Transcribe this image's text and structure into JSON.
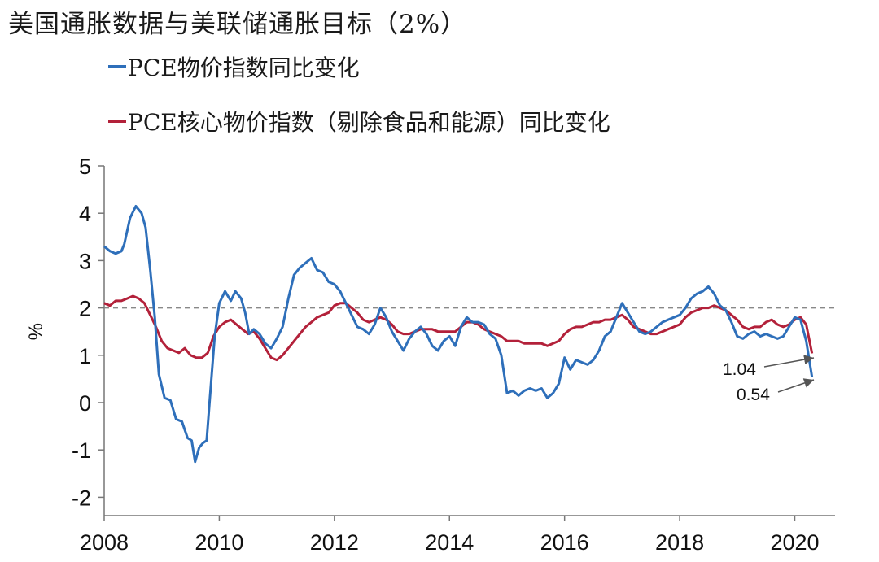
{
  "title": "美国通胀数据与美联储通胀目标（2%）",
  "chart_data": {
    "type": "line",
    "title": "美国通胀数据与美联储通胀目标（2%）",
    "ylabel": "%",
    "xlabel": "",
    "xlim": [
      2008,
      2020.7
    ],
    "ylim": [
      -2.5,
      5
    ],
    "yticks": [
      5,
      4,
      3,
      2,
      1,
      0,
      -1,
      -2
    ],
    "yticklabels": [
      "5",
      "4",
      "3",
      "2",
      "1",
      "0",
      "-1",
      "-2"
    ],
    "xticks": [
      2008,
      2010,
      2012,
      2014,
      2016,
      2018,
      2020
    ],
    "xticklabels": [
      "2008",
      "2010",
      "2012",
      "2014",
      "2016",
      "2018",
      "2020"
    ],
    "reference_line": {
      "y": 2,
      "style": "dashed",
      "color": "#888888"
    },
    "legend_position": "top-left",
    "series": [
      {
        "name": "PCE物价指数同比变化",
        "color": "#2e6fba",
        "points": [
          [
            2008.0,
            3.3
          ],
          [
            2008.1,
            3.2
          ],
          [
            2008.2,
            3.15
          ],
          [
            2008.3,
            3.2
          ],
          [
            2008.35,
            3.35
          ],
          [
            2008.45,
            3.9
          ],
          [
            2008.55,
            4.15
          ],
          [
            2008.65,
            4.0
          ],
          [
            2008.72,
            3.7
          ],
          [
            2008.8,
            2.8
          ],
          [
            2008.88,
            1.8
          ],
          [
            2008.95,
            0.6
          ],
          [
            2009.05,
            0.1
          ],
          [
            2009.15,
            0.05
          ],
          [
            2009.25,
            -0.35
          ],
          [
            2009.35,
            -0.4
          ],
          [
            2009.45,
            -0.75
          ],
          [
            2009.52,
            -0.8
          ],
          [
            2009.58,
            -1.25
          ],
          [
            2009.65,
            -0.95
          ],
          [
            2009.72,
            -0.85
          ],
          [
            2009.78,
            -0.8
          ],
          [
            2009.85,
            0.3
          ],
          [
            2009.92,
            1.4
          ],
          [
            2010.0,
            2.1
          ],
          [
            2010.1,
            2.35
          ],
          [
            2010.2,
            2.15
          ],
          [
            2010.28,
            2.35
          ],
          [
            2010.38,
            2.2
          ],
          [
            2010.45,
            1.9
          ],
          [
            2010.52,
            1.45
          ],
          [
            2010.6,
            1.55
          ],
          [
            2010.7,
            1.45
          ],
          [
            2010.8,
            1.25
          ],
          [
            2010.9,
            1.15
          ],
          [
            2011.0,
            1.35
          ],
          [
            2011.1,
            1.6
          ],
          [
            2011.2,
            2.2
          ],
          [
            2011.3,
            2.7
          ],
          [
            2011.4,
            2.85
          ],
          [
            2011.5,
            2.95
          ],
          [
            2011.6,
            3.05
          ],
          [
            2011.7,
            2.8
          ],
          [
            2011.8,
            2.75
          ],
          [
            2011.9,
            2.55
          ],
          [
            2012.0,
            2.5
          ],
          [
            2012.1,
            2.35
          ],
          [
            2012.2,
            2.1
          ],
          [
            2012.3,
            1.85
          ],
          [
            2012.4,
            1.6
          ],
          [
            2012.5,
            1.55
          ],
          [
            2012.6,
            1.45
          ],
          [
            2012.7,
            1.65
          ],
          [
            2012.8,
            2.0
          ],
          [
            2012.9,
            1.8
          ],
          [
            2013.0,
            1.5
          ],
          [
            2013.1,
            1.3
          ],
          [
            2013.2,
            1.1
          ],
          [
            2013.3,
            1.35
          ],
          [
            2013.4,
            1.5
          ],
          [
            2013.5,
            1.6
          ],
          [
            2013.6,
            1.45
          ],
          [
            2013.7,
            1.2
          ],
          [
            2013.8,
            1.1
          ],
          [
            2013.9,
            1.3
          ],
          [
            2014.0,
            1.4
          ],
          [
            2014.1,
            1.2
          ],
          [
            2014.2,
            1.6
          ],
          [
            2014.3,
            1.8
          ],
          [
            2014.4,
            1.7
          ],
          [
            2014.5,
            1.7
          ],
          [
            2014.6,
            1.65
          ],
          [
            2014.7,
            1.45
          ],
          [
            2014.8,
            1.35
          ],
          [
            2014.9,
            1.0
          ],
          [
            2015.0,
            0.2
          ],
          [
            2015.1,
            0.25
          ],
          [
            2015.2,
            0.15
          ],
          [
            2015.3,
            0.25
          ],
          [
            2015.4,
            0.3
          ],
          [
            2015.5,
            0.25
          ],
          [
            2015.6,
            0.3
          ],
          [
            2015.7,
            0.1
          ],
          [
            2015.8,
            0.2
          ],
          [
            2015.9,
            0.4
          ],
          [
            2016.0,
            0.95
          ],
          [
            2016.1,
            0.7
          ],
          [
            2016.2,
            0.9
          ],
          [
            2016.3,
            0.85
          ],
          [
            2016.4,
            0.8
          ],
          [
            2016.5,
            0.9
          ],
          [
            2016.6,
            1.1
          ],
          [
            2016.7,
            1.4
          ],
          [
            2016.8,
            1.5
          ],
          [
            2016.9,
            1.8
          ],
          [
            2017.0,
            2.1
          ],
          [
            2017.1,
            1.9
          ],
          [
            2017.2,
            1.7
          ],
          [
            2017.3,
            1.5
          ],
          [
            2017.4,
            1.45
          ],
          [
            2017.5,
            1.5
          ],
          [
            2017.6,
            1.6
          ],
          [
            2017.7,
            1.7
          ],
          [
            2017.8,
            1.75
          ],
          [
            2017.9,
            1.8
          ],
          [
            2018.0,
            1.85
          ],
          [
            2018.1,
            2.0
          ],
          [
            2018.2,
            2.2
          ],
          [
            2018.3,
            2.3
          ],
          [
            2018.4,
            2.35
          ],
          [
            2018.5,
            2.45
          ],
          [
            2018.6,
            2.3
          ],
          [
            2018.7,
            2.05
          ],
          [
            2018.8,
            1.95
          ],
          [
            2018.9,
            1.7
          ],
          [
            2019.0,
            1.4
          ],
          [
            2019.1,
            1.35
          ],
          [
            2019.2,
            1.45
          ],
          [
            2019.3,
            1.5
          ],
          [
            2019.4,
            1.4
          ],
          [
            2019.5,
            1.45
          ],
          [
            2019.6,
            1.4
          ],
          [
            2019.7,
            1.35
          ],
          [
            2019.8,
            1.4
          ],
          [
            2019.9,
            1.6
          ],
          [
            2020.0,
            1.8
          ],
          [
            2020.1,
            1.75
          ],
          [
            2020.2,
            1.3
          ],
          [
            2020.3,
            0.54
          ]
        ]
      },
      {
        "name": "PCE核心物价指数（剔除食品和能源）同比变化",
        "color": "#b3213a",
        "points": [
          [
            2008.0,
            2.1
          ],
          [
            2008.1,
            2.05
          ],
          [
            2008.2,
            2.15
          ],
          [
            2008.3,
            2.15
          ],
          [
            2008.4,
            2.2
          ],
          [
            2008.5,
            2.25
          ],
          [
            2008.6,
            2.2
          ],
          [
            2008.7,
            2.1
          ],
          [
            2008.8,
            1.85
          ],
          [
            2008.9,
            1.6
          ],
          [
            2009.0,
            1.3
          ],
          [
            2009.1,
            1.15
          ],
          [
            2009.2,
            1.1
          ],
          [
            2009.3,
            1.05
          ],
          [
            2009.4,
            1.15
          ],
          [
            2009.5,
            1.0
          ],
          [
            2009.6,
            0.95
          ],
          [
            2009.7,
            0.95
          ],
          [
            2009.8,
            1.05
          ],
          [
            2009.9,
            1.4
          ],
          [
            2010.0,
            1.6
          ],
          [
            2010.1,
            1.7
          ],
          [
            2010.2,
            1.75
          ],
          [
            2010.3,
            1.65
          ],
          [
            2010.4,
            1.55
          ],
          [
            2010.5,
            1.45
          ],
          [
            2010.6,
            1.5
          ],
          [
            2010.7,
            1.35
          ],
          [
            2010.8,
            1.15
          ],
          [
            2010.9,
            0.95
          ],
          [
            2011.0,
            0.9
          ],
          [
            2011.1,
            1.0
          ],
          [
            2011.2,
            1.15
          ],
          [
            2011.3,
            1.3
          ],
          [
            2011.4,
            1.45
          ],
          [
            2011.5,
            1.6
          ],
          [
            2011.6,
            1.7
          ],
          [
            2011.7,
            1.8
          ],
          [
            2011.8,
            1.85
          ],
          [
            2011.9,
            1.9
          ],
          [
            2012.0,
            2.05
          ],
          [
            2012.1,
            2.1
          ],
          [
            2012.2,
            2.1
          ],
          [
            2012.3,
            2.0
          ],
          [
            2012.4,
            1.9
          ],
          [
            2012.5,
            1.75
          ],
          [
            2012.6,
            1.7
          ],
          [
            2012.7,
            1.75
          ],
          [
            2012.8,
            1.8
          ],
          [
            2012.9,
            1.75
          ],
          [
            2013.0,
            1.65
          ],
          [
            2013.1,
            1.5
          ],
          [
            2013.2,
            1.45
          ],
          [
            2013.3,
            1.45
          ],
          [
            2013.4,
            1.5
          ],
          [
            2013.5,
            1.55
          ],
          [
            2013.6,
            1.55
          ],
          [
            2013.7,
            1.55
          ],
          [
            2013.8,
            1.5
          ],
          [
            2013.9,
            1.5
          ],
          [
            2014.0,
            1.5
          ],
          [
            2014.1,
            1.5
          ],
          [
            2014.2,
            1.6
          ],
          [
            2014.3,
            1.7
          ],
          [
            2014.4,
            1.7
          ],
          [
            2014.5,
            1.65
          ],
          [
            2014.6,
            1.55
          ],
          [
            2014.7,
            1.5
          ],
          [
            2014.8,
            1.45
          ],
          [
            2014.9,
            1.4
          ],
          [
            2015.0,
            1.3
          ],
          [
            2015.1,
            1.3
          ],
          [
            2015.2,
            1.3
          ],
          [
            2015.3,
            1.25
          ],
          [
            2015.4,
            1.25
          ],
          [
            2015.5,
            1.25
          ],
          [
            2015.6,
            1.25
          ],
          [
            2015.7,
            1.2
          ],
          [
            2015.8,
            1.25
          ],
          [
            2015.9,
            1.3
          ],
          [
            2016.0,
            1.45
          ],
          [
            2016.1,
            1.55
          ],
          [
            2016.2,
            1.6
          ],
          [
            2016.3,
            1.6
          ],
          [
            2016.4,
            1.65
          ],
          [
            2016.5,
            1.7
          ],
          [
            2016.6,
            1.7
          ],
          [
            2016.7,
            1.75
          ],
          [
            2016.8,
            1.75
          ],
          [
            2016.9,
            1.8
          ],
          [
            2017.0,
            1.85
          ],
          [
            2017.1,
            1.75
          ],
          [
            2017.2,
            1.6
          ],
          [
            2017.3,
            1.55
          ],
          [
            2017.4,
            1.5
          ],
          [
            2017.5,
            1.45
          ],
          [
            2017.6,
            1.45
          ],
          [
            2017.7,
            1.5
          ],
          [
            2017.8,
            1.55
          ],
          [
            2017.9,
            1.6
          ],
          [
            2018.0,
            1.65
          ],
          [
            2018.1,
            1.8
          ],
          [
            2018.2,
            1.9
          ],
          [
            2018.3,
            1.95
          ],
          [
            2018.4,
            2.0
          ],
          [
            2018.5,
            2.0
          ],
          [
            2018.6,
            2.05
          ],
          [
            2018.7,
            2.0
          ],
          [
            2018.8,
            1.95
          ],
          [
            2018.9,
            1.85
          ],
          [
            2019.0,
            1.75
          ],
          [
            2019.1,
            1.6
          ],
          [
            2019.2,
            1.55
          ],
          [
            2019.3,
            1.6
          ],
          [
            2019.4,
            1.6
          ],
          [
            2019.5,
            1.7
          ],
          [
            2019.6,
            1.75
          ],
          [
            2019.7,
            1.65
          ],
          [
            2019.8,
            1.6
          ],
          [
            2019.9,
            1.65
          ],
          [
            2020.0,
            1.75
          ],
          [
            2020.1,
            1.8
          ],
          [
            2020.2,
            1.65
          ],
          [
            2020.3,
            1.04
          ]
        ]
      }
    ],
    "annotations": [
      {
        "text": "1.04",
        "series": "PCE核心物价指数（剔除食品和能源）同比变化"
      },
      {
        "text": "0.54",
        "series": "PCE物价指数同比变化"
      }
    ]
  }
}
